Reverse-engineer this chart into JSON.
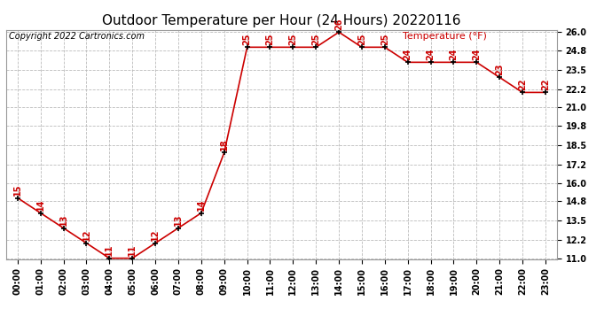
{
  "title": "Outdoor Temperature per Hour (24 Hours) 20220116",
  "copyright": "Copyright 2022 Cartronics.com",
  "legend_label": "Temperature (°F)",
  "hours": [
    "00:00",
    "01:00",
    "02:00",
    "03:00",
    "04:00",
    "05:00",
    "06:00",
    "07:00",
    "08:00",
    "09:00",
    "10:00",
    "11:00",
    "12:00",
    "13:00",
    "14:00",
    "15:00",
    "16:00",
    "17:00",
    "18:00",
    "19:00",
    "20:00",
    "21:00",
    "22:00",
    "23:00"
  ],
  "temps": [
    15,
    14,
    13,
    12,
    11,
    11,
    12,
    13,
    14,
    18,
    25,
    25,
    25,
    25,
    26,
    25,
    25,
    24,
    24,
    24,
    24,
    23,
    22,
    22
  ],
  "line_color": "#cc0000",
  "marker_color": "#000000",
  "label_color": "#cc0000",
  "grid_color": "#bbbbbb",
  "bg_color": "#ffffff",
  "ylim_min": 11.0,
  "ylim_max": 26.0,
  "yticks": [
    11.0,
    12.2,
    13.5,
    14.8,
    16.0,
    17.2,
    18.5,
    19.8,
    21.0,
    22.2,
    23.5,
    24.8,
    26.0
  ],
  "title_fontsize": 11,
  "copyright_fontsize": 7,
  "legend_fontsize": 8,
  "tick_fontsize": 7,
  "data_label_fontsize": 7
}
